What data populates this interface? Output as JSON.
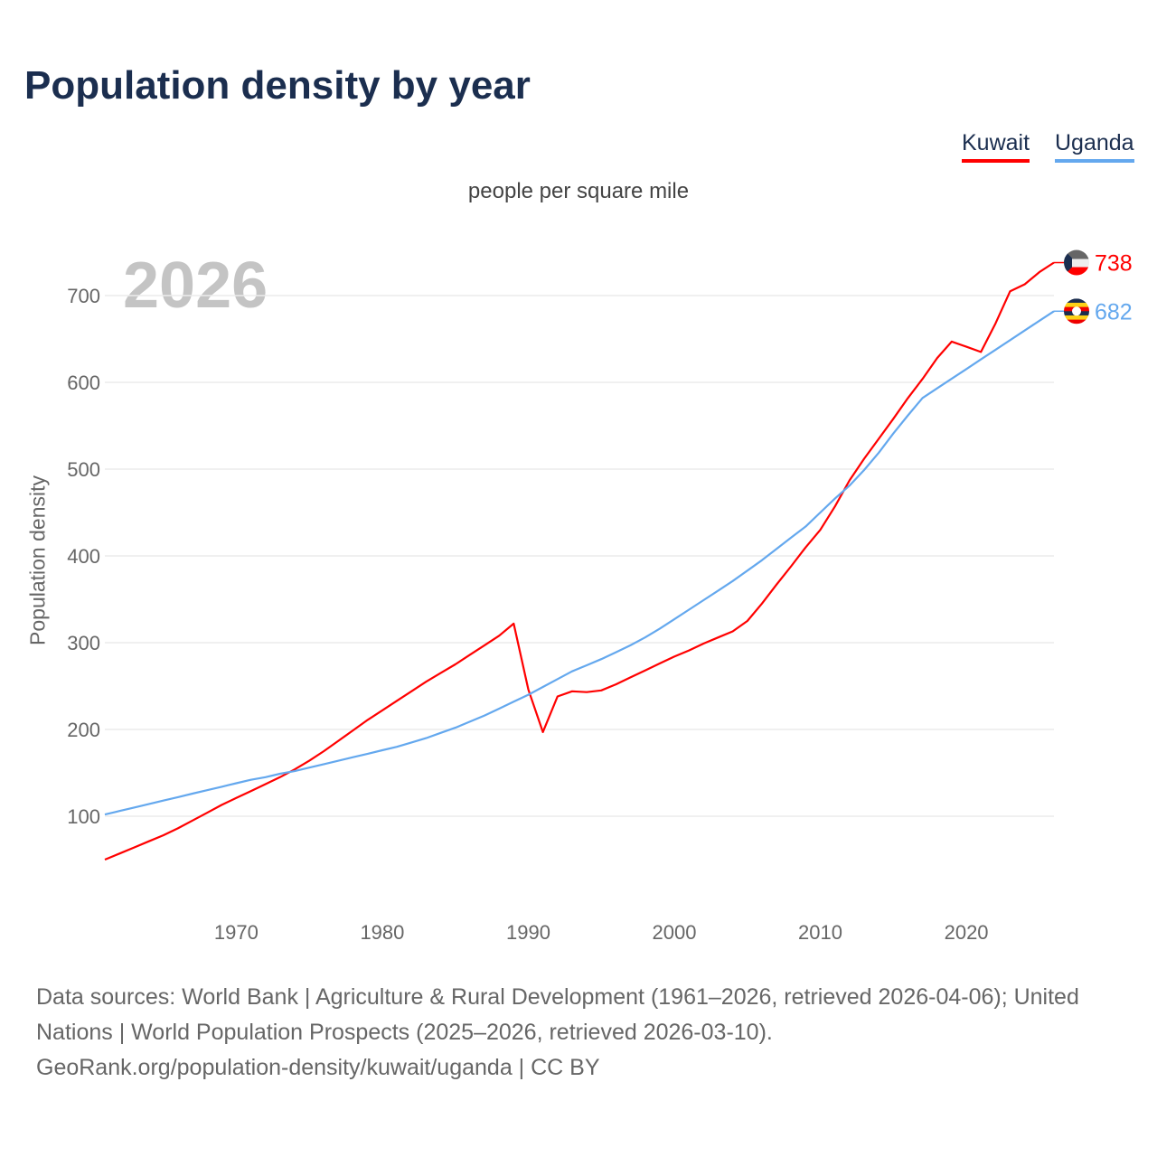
{
  "title": "Population density by year",
  "subtitle": "people per square mile",
  "legend": [
    {
      "label": "Kuwait",
      "color": "#ff0000"
    },
    {
      "label": "Uganda",
      "color": "#64a8ee"
    }
  ],
  "footer": {
    "line1": "Data sources: World Bank | Agriculture & Rural Development (1961–2026, retrieved 2026-04-06); United Nations | World Population Prospects (2025–2026, retrieved 2026-03-10).",
    "line2": "GeoRank.org/population-density/kuwait/uganda | CC BY"
  },
  "chart_data": {
    "type": "line",
    "title": "Population density by year",
    "ylabel": "Population density",
    "year_label": "2026",
    "xlim": [
      1961,
      2026
    ],
    "ylim": [
      0,
      760
    ],
    "xticks": [
      1970,
      1980,
      1990,
      2000,
      2010,
      2020
    ],
    "yticks": [
      100,
      200,
      300,
      400,
      500,
      600,
      700
    ],
    "grid": true,
    "x": [
      1961,
      1962,
      1963,
      1964,
      1965,
      1966,
      1967,
      1968,
      1969,
      1970,
      1971,
      1972,
      1973,
      1974,
      1975,
      1976,
      1977,
      1978,
      1979,
      1980,
      1981,
      1982,
      1983,
      1984,
      1985,
      1986,
      1987,
      1988,
      1989,
      1990,
      1991,
      1992,
      1993,
      1994,
      1995,
      1996,
      1997,
      1998,
      1999,
      2000,
      2001,
      2002,
      2003,
      2004,
      2005,
      2006,
      2007,
      2008,
      2009,
      2010,
      2011,
      2012,
      2013,
      2014,
      2015,
      2016,
      2017,
      2018,
      2019,
      2020,
      2021,
      2022,
      2023,
      2024,
      2025,
      2026
    ],
    "series": [
      {
        "name": "Kuwait",
        "color": "#ff0000",
        "end_label": "738",
        "values": [
          50,
          57,
          64,
          71,
          78,
          86,
          95,
          104,
          113,
          121,
          129,
          137,
          145,
          154,
          164,
          175,
          187,
          199,
          211,
          222,
          233,
          244,
          255,
          265,
          275,
          286,
          297,
          308,
          322,
          246,
          197,
          238,
          244,
          243,
          245,
          252,
          260,
          268,
          276,
          284,
          291,
          299,
          306,
          313,
          325,
          345,
          367,
          388,
          410,
          430,
          457,
          487,
          512,
          535,
          558,
          582,
          604,
          628,
          647,
          641,
          635,
          668,
          705,
          713,
          727,
          738
        ]
      },
      {
        "name": "Uganda",
        "color": "#64a8ee",
        "end_label": "682",
        "values": [
          102,
          106,
          110,
          114,
          118,
          122,
          126,
          130,
          134,
          138,
          142,
          145,
          149,
          152,
          156,
          160,
          164,
          168,
          172,
          176,
          180,
          185,
          190,
          196,
          202,
          209,
          216,
          224,
          232,
          240,
          249,
          258,
          267,
          274,
          281,
          289,
          297,
          306,
          316,
          327,
          338,
          349,
          360,
          371,
          383,
          395,
          408,
          421,
          434,
          450,
          466,
          481,
          499,
          519,
          541,
          562,
          582,
          603,
          625,
          647,
          670,
          682,
          682,
          682,
          682,
          682
        ]
      }
    ]
  }
}
